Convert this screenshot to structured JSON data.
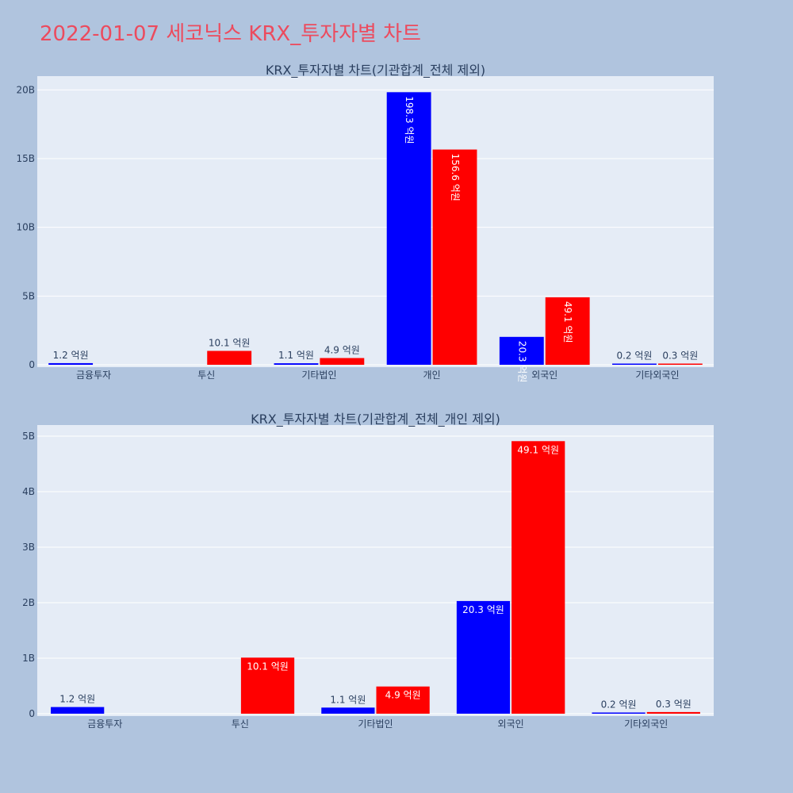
{
  "title": "2022-01-07 세코닉스 KRX_투자자별 차트",
  "colors": {
    "buy": "#0000ff",
    "sell": "#ff0000",
    "title": "#ec4b5e"
  },
  "chart_data": [
    {
      "type": "bar",
      "title": "KRX_투자자별 차트(기관합계_전체 제외)",
      "categories": [
        "금융투자",
        "투신",
        "기타법인",
        "개인",
        "외국인",
        "기타외국인"
      ],
      "ylim": [
        0,
        21000000000
      ],
      "yticks": [
        0,
        5000000000,
        10000000000,
        15000000000,
        20000000000
      ],
      "ytick_labels": [
        "0",
        "5B",
        "10B",
        "15B",
        "20B"
      ],
      "grid": true,
      "series": [
        {
          "color": "#0000ff",
          "values": [
            120000000,
            null,
            110000000,
            19830000000,
            2030000000,
            20000000
          ],
          "labels": [
            "1.2 억원",
            null,
            "1.1 억원",
            "198.3 억원",
            "20.3 억원",
            "0.2 억원"
          ]
        },
        {
          "color": "#ff0000",
          "values": [
            null,
            1010000000,
            490000000,
            15660000000,
            4910000000,
            30000000
          ],
          "labels": [
            null,
            "10.1 억원",
            "4.9 억원",
            "156.6 억원",
            "49.1 억원",
            "0.3 억원"
          ]
        }
      ]
    },
    {
      "type": "bar",
      "title": "KRX_투자자별 차트(기관합계_전체_개인 제외)",
      "categories": [
        "금융투자",
        "투신",
        "기타법인",
        "외국인",
        "기타외국인"
      ],
      "ylim": [
        0,
        5200000000
      ],
      "yticks": [
        0,
        1000000000,
        2000000000,
        3000000000,
        4000000000,
        5000000000
      ],
      "ytick_labels": [
        "0",
        "1B",
        "2B",
        "3B",
        "4B",
        "5B"
      ],
      "grid": true,
      "series": [
        {
          "color": "#0000ff",
          "values": [
            120000000,
            null,
            110000000,
            2030000000,
            20000000
          ],
          "labels": [
            "1.2 억원",
            null,
            "1.1 억원",
            "20.3 억원",
            "0.2 억원"
          ]
        },
        {
          "color": "#ff0000",
          "values": [
            null,
            1010000000,
            490000000,
            4910000000,
            30000000
          ],
          "labels": [
            null,
            "10.1 억원",
            "4.9 억원",
            "49.1 억원",
            "0.3 억원"
          ]
        }
      ]
    }
  ]
}
